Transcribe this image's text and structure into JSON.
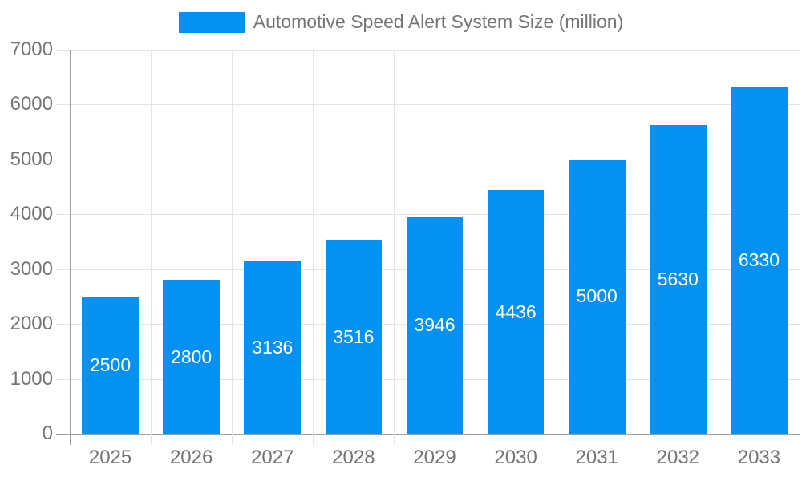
{
  "legend": {
    "label": "Automotive Speed Alert System Size (million)"
  },
  "chart_data": {
    "type": "bar",
    "title": "Automotive Speed Alert System Size (million)",
    "categories": [
      "2025",
      "2026",
      "2027",
      "2028",
      "2029",
      "2030",
      "2031",
      "2032",
      "2033"
    ],
    "values": [
      2500,
      2800,
      3136,
      3516,
      3946,
      4436,
      5000,
      5630,
      6330
    ],
    "xlabel": "",
    "ylabel": "",
    "ylim": [
      0,
      7000
    ],
    "yticks": [
      0,
      1000,
      2000,
      3000,
      4000,
      5000,
      6000,
      7000
    ],
    "grid": true,
    "legend_position": "top",
    "value_labels": "inside-center"
  },
  "colors": {
    "bar": "#0591f2",
    "bar_value_text": "#ffffff",
    "axis_line": "#9e9e9e",
    "gridline": "#e4e4e4",
    "label_text": "#757575",
    "background": "#ffffff"
  }
}
